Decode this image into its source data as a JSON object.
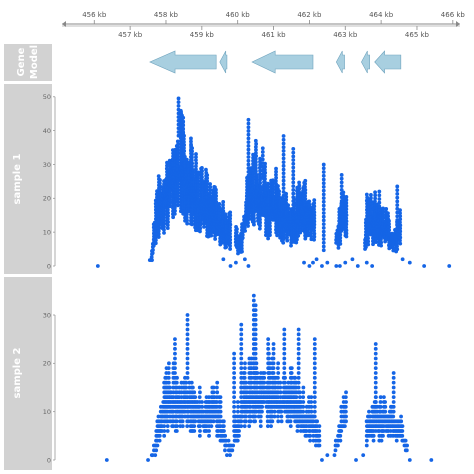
{
  "colors": {
    "panel_bg": "#d2d2d2",
    "panel_label": "#ffffff",
    "point": "#1565e6",
    "gene": "#a8cfe0",
    "gene_stroke": "#6fa3bd",
    "axis": "#888888"
  },
  "tracks": {
    "genome_axis_label": "",
    "gene_model_label": [
      "Gene",
      "Model"
    ],
    "sample1_label": "sample 1",
    "sample2_label": "sample 2"
  },
  "chart_data": {
    "type": "scatter",
    "genome_axis": {
      "unit": "kb",
      "xlim": [
        455.1,
        466.2
      ],
      "upper_ticks": [
        "456 kb",
        "458 kb",
        "460 kb",
        "462 kb",
        "464 kb",
        "466 kb"
      ],
      "upper_tick_values": [
        456,
        458,
        460,
        462,
        464,
        466
      ],
      "lower_ticks": [
        "457 kb",
        "459 kb",
        "461 kb",
        "463 kb",
        "465 kb"
      ],
      "lower_tick_values": [
        457,
        459,
        461,
        463,
        465
      ]
    },
    "genes": [
      {
        "start": 457.55,
        "end": 459.4,
        "strand": "-"
      },
      {
        "start": 459.5,
        "end": 459.7,
        "strand": "-"
      },
      {
        "start": 460.4,
        "end": 462.1,
        "strand": "-"
      },
      {
        "start": 462.75,
        "end": 462.98,
        "strand": "-"
      },
      {
        "start": 463.45,
        "end": 463.68,
        "strand": "-"
      },
      {
        "start": 463.82,
        "end": 464.55,
        "strand": "-"
      }
    ],
    "series": [
      {
        "ylim": [
          0,
          52
        ],
        "yticks": [
          "0",
          "10",
          "20",
          "30",
          "40",
          "50"
        ],
        "ytick_values": [
          0,
          10,
          20,
          30,
          40,
          50
        ],
        "profile_x": [
          456.8,
          457.6,
          457.7,
          457.85,
          458.0,
          458.15,
          458.3,
          458.5,
          458.7,
          458.9,
          459.1,
          459.3,
          459.5,
          459.7,
          459.9,
          460.1,
          460.2,
          460.4,
          460.55,
          460.7,
          460.9,
          461.1,
          461.3,
          461.5,
          461.7,
          461.9,
          462.1,
          462.3,
          462.6,
          462.8,
          463.0,
          463.3,
          463.5,
          463.6,
          463.75,
          463.9,
          464.1,
          464.3,
          464.5,
          464.7,
          465.0
        ],
        "profile_y": [
          0,
          3,
          18,
          24,
          28,
          33,
          39,
          37,
          30,
          26,
          23,
          21,
          17,
          14,
          12,
          8,
          20,
          29,
          30,
          26,
          22,
          24,
          18,
          16,
          20,
          21,
          18,
          6,
          2,
          13,
          21,
          17,
          2,
          17,
          18,
          17,
          15,
          11,
          13,
          17,
          1
        ],
        "peaks": [
          [
            458.35,
            50
          ],
          [
            458.42,
            46
          ],
          [
            458.48,
            44
          ],
          [
            460.3,
            44
          ],
          [
            461.28,
            39
          ],
          [
            461.55,
            35
          ],
          [
            460.7,
            35
          ],
          [
            462.4,
            31
          ],
          [
            464.45,
            24
          ],
          [
            458.7,
            36
          ],
          [
            462.9,
            27
          ],
          [
            463.95,
            23
          ]
        ],
        "ranges": [
          [
            457.55,
            459.8
          ],
          [
            459.95,
            462.15
          ],
          [
            462.75,
            463.05
          ],
          [
            463.55,
            464.55
          ]
        ],
        "sparse_x": [
          456.1,
          459.6,
          459.8,
          459.95,
          460.2,
          460.3,
          461.85,
          462.0,
          462.1,
          462.2,
          462.35,
          462.5,
          462.75,
          462.85,
          463.0,
          463.2,
          463.35,
          463.6,
          463.75,
          464.6,
          464.8,
          465.2,
          465.9
        ],
        "sparse_y": [
          0,
          2,
          0,
          1,
          2,
          0,
          1,
          0,
          1,
          2,
          0,
          1,
          0,
          0,
          1,
          2,
          0,
          1,
          0,
          2,
          1,
          0,
          0
        ]
      },
      {
        "ylim": [
          0,
          36
        ],
        "yticks": [
          "0",
          "10",
          "20",
          "30"
        ],
        "ytick_values": [
          0,
          10,
          20,
          30
        ],
        "profile_x": [
          456.4,
          457.6,
          457.8,
          458.0,
          458.2,
          458.4,
          458.6,
          458.8,
          459.0,
          459.2,
          459.4,
          459.6,
          459.8,
          460.0,
          460.2,
          460.4,
          460.6,
          460.8,
          461.0,
          461.2,
          461.4,
          461.6,
          461.8,
          462.0,
          462.2,
          462.5,
          462.75,
          462.9,
          463.1,
          463.4,
          463.6,
          463.8,
          464.0,
          464.2,
          464.4,
          464.6,
          464.8
        ],
        "profile_y": [
          0,
          1,
          8,
          16,
          17,
          14,
          17,
          14,
          12,
          11,
          14,
          8,
          2,
          10,
          17,
          18,
          16,
          19,
          17,
          16,
          18,
          14,
          13,
          11,
          8,
          0,
          4,
          11,
          12,
          0,
          8,
          12,
          11,
          12,
          9,
          7,
          0
        ],
        "peaks": [
          [
            460.45,
            34
          ],
          [
            460.5,
            32
          ],
          [
            458.6,
            30
          ],
          [
            458.25,
            26
          ],
          [
            461.3,
            28
          ],
          [
            461.7,
            27
          ],
          [
            460.1,
            28
          ],
          [
            460.85,
            26
          ],
          [
            463.85,
            24
          ],
          [
            464.35,
            18
          ],
          [
            459.9,
            22
          ],
          [
            462.15,
            25
          ],
          [
            461.0,
            24
          ]
        ],
        "ranges": [
          [
            457.6,
            459.7
          ],
          [
            459.75,
            462.3
          ],
          [
            462.7,
            463.05
          ],
          [
            463.6,
            464.75
          ]
        ],
        "sparse_x": [
          456.35,
          457.5,
          457.7,
          459.7,
          462.35,
          462.5,
          463.3,
          463.5,
          464.8,
          465.4
        ],
        "sparse_y": [
          0,
          0,
          1,
          1,
          0,
          1,
          0,
          1,
          0,
          0
        ]
      }
    ]
  }
}
